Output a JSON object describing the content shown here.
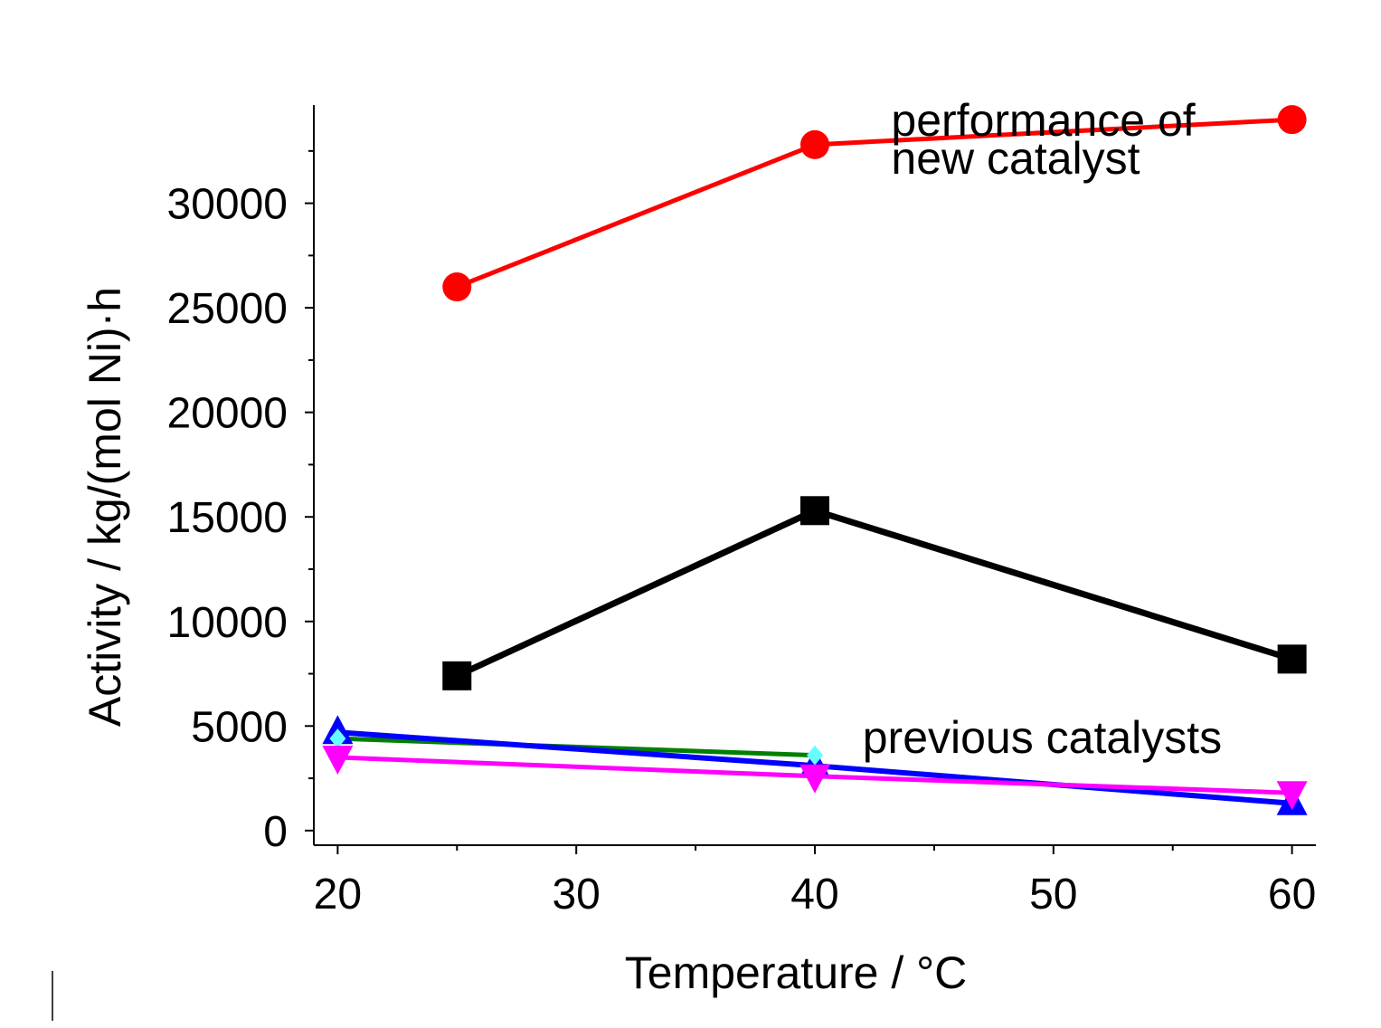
{
  "chart_data": {
    "type": "line",
    "title": "",
    "xlabel": "Temperature / °C",
    "ylabel": "Activity / kg/(mol Ni)·h",
    "xlim": [
      19,
      61
    ],
    "ylim": [
      -700,
      34700
    ],
    "xticks": [
      20,
      30,
      40,
      50,
      60
    ],
    "yticks": [
      0,
      5000,
      10000,
      15000,
      20000,
      25000,
      30000
    ],
    "xtick_labels": [
      "20",
      "30",
      "40",
      "50",
      "60"
    ],
    "ytick_labels": [
      "0",
      "5000",
      "10000",
      "15000",
      "20000",
      "25000",
      "30000"
    ],
    "grid": false,
    "annotations": [
      {
        "text": "performance of",
        "x": 43.2,
        "y": 34000
      },
      {
        "text": "new catalyst",
        "x": 43.2,
        "y": 32200
      },
      {
        "text": "previous catalysts",
        "x": 42.0,
        "y": 4500
      }
    ],
    "series": [
      {
        "x": [
          25,
          40,
          60
        ],
        "y": [
          26000,
          32800,
          34000
        ],
        "color": "#ff0000",
        "marker": "circle",
        "line_width": 5
      },
      {
        "x": [
          25,
          40,
          60
        ],
        "y": [
          7400,
          15300,
          8200
        ],
        "color": "#000000",
        "marker": "square",
        "line_width": 7
      },
      {
        "x": [
          20,
          40
        ],
        "y": [
          4400,
          3600
        ],
        "color": "#008000",
        "marker": "none",
        "line_width": 5
      },
      {
        "x": [
          20,
          40,
          60
        ],
        "y": [
          4700,
          3100,
          1300
        ],
        "color": "#0000ff",
        "marker": "triangle-up",
        "line_width": 6
      },
      {
        "x": [
          20,
          40
        ],
        "y": [
          4400,
          3600
        ],
        "color": "#66ffff",
        "marker": "diamond",
        "line_width": 0
      },
      {
        "x": [
          20,
          40,
          60
        ],
        "y": [
          3500,
          2600,
          1800
        ],
        "color": "#ff00ff",
        "marker": "triangle-down",
        "line_width": 5
      }
    ]
  }
}
